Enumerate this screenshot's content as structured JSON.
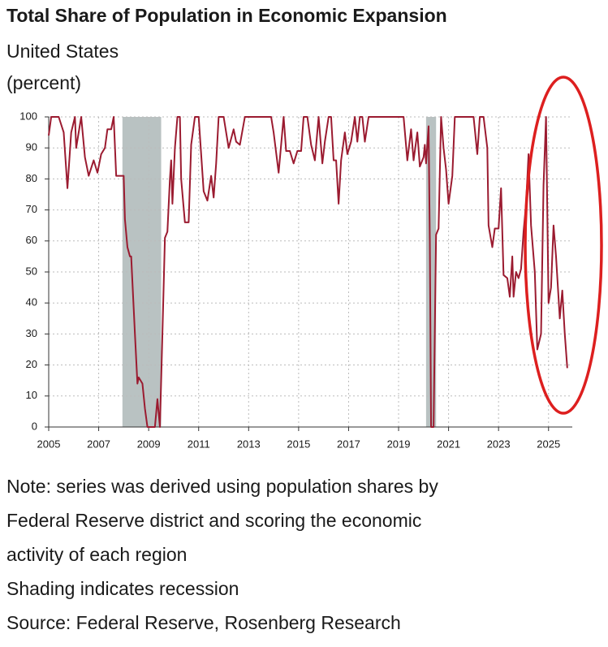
{
  "chart_data": {
    "type": "line",
    "title": "Total Share of Population in Economic Expansion",
    "subtitle": "United States",
    "ylabel": "(percent)",
    "notes": [
      "Note: series was derived using population shares by",
      "Federal Reserve district and scoring the economic",
      "activity of each region",
      "Shading indicates recession",
      "Source: Federal Reserve, Rosenberg Research"
    ],
    "xlim": [
      2005,
      2025.95
    ],
    "ylim": [
      0,
      100
    ],
    "xticks": [
      2005,
      2007,
      2009,
      2011,
      2013,
      2015,
      2017,
      2019,
      2021,
      2023,
      2025
    ],
    "yticks": [
      0,
      10,
      20,
      30,
      40,
      50,
      60,
      70,
      80,
      90,
      100
    ],
    "grid": true,
    "recessions": [
      [
        2007.95,
        2009.5
      ],
      [
        2020.1,
        2020.5
      ]
    ],
    "recession_color": "#b9c2c2",
    "series": [
      {
        "color": "#9b1b30",
        "x": [
          2005.0,
          2005.1,
          2005.4,
          2005.6,
          2005.75,
          2005.9,
          2006.05,
          2006.1,
          2006.3,
          2006.45,
          2006.6,
          2006.8,
          2006.95,
          2007.1,
          2007.25,
          2007.35,
          2007.5,
          2007.6,
          2007.7,
          2007.85,
          2008.0,
          2008.05,
          2008.15,
          2008.25,
          2008.3,
          2008.45,
          2008.55,
          2008.6,
          2008.75,
          2008.85,
          2008.95,
          2009.15,
          2009.25,
          2009.35,
          2009.45,
          2009.55,
          2009.65,
          2009.75,
          2009.85,
          2009.9,
          2009.95,
          2010.05,
          2010.15,
          2010.25,
          2010.3,
          2010.45,
          2010.6,
          2010.7,
          2010.85,
          2011.0,
          2011.2,
          2011.35,
          2011.5,
          2011.6,
          2011.7,
          2011.8,
          2012.0,
          2012.2,
          2012.4,
          2012.5,
          2012.65,
          2012.85,
          2013.1,
          2013.5,
          2013.9,
          2014.0,
          2014.2,
          2014.4,
          2014.5,
          2014.65,
          2014.8,
          2014.95,
          2015.1,
          2015.2,
          2015.35,
          2015.5,
          2015.65,
          2015.8,
          2015.95,
          2016.05,
          2016.2,
          2016.3,
          2016.4,
          2016.5,
          2016.6,
          2016.7,
          2016.85,
          2016.95,
          2017.1,
          2017.25,
          2017.35,
          2017.45,
          2017.55,
          2017.65,
          2017.8,
          2018.2,
          2018.5,
          2018.9,
          2019.2,
          2019.35,
          2019.5,
          2019.6,
          2019.75,
          2019.85,
          2020.0,
          2020.05,
          2020.1,
          2020.2,
          2020.25,
          2020.3,
          2020.35,
          2020.4,
          2020.5,
          2020.6,
          2020.7,
          2020.8,
          2020.9,
          2021.0,
          2021.15,
          2021.25,
          2021.5,
          2021.8,
          2022.0,
          2022.15,
          2022.25,
          2022.4,
          2022.55,
          2022.6,
          2022.75,
          2022.85,
          2023.0,
          2023.1,
          2023.2,
          2023.35,
          2023.45,
          2023.55,
          2023.6,
          2023.7,
          2023.8,
          2023.9,
          2024.0,
          2024.1,
          2024.2,
          2024.3,
          2024.45,
          2024.55,
          2024.7,
          2024.8,
          2024.9,
          2025.0,
          2025.1,
          2025.2,
          2025.3,
          2025.45,
          2025.55,
          2025.65,
          2025.75
        ],
        "values": [
          94,
          100,
          100,
          95,
          77,
          95,
          100,
          90,
          100,
          87,
          81,
          86,
          82,
          88,
          90,
          96,
          96,
          100,
          81,
          81,
          81,
          67,
          58,
          55,
          55,
          30,
          14,
          16,
          14,
          6,
          0,
          0,
          0,
          9,
          0,
          30,
          61,
          63,
          80,
          86,
          72,
          90,
          100,
          100,
          80,
          66,
          66,
          91,
          100,
          100,
          76,
          73,
          81,
          74,
          85,
          100,
          100,
          90,
          96,
          92,
          91,
          100,
          100,
          100,
          100,
          95,
          82,
          100,
          89,
          89,
          85,
          89,
          89,
          100,
          100,
          91,
          86,
          100,
          85,
          92,
          100,
          100,
          86,
          86,
          72,
          86,
          95,
          88,
          92,
          100,
          92,
          100,
          100,
          92,
          100,
          100,
          100,
          100,
          100,
          86,
          96,
          86,
          95,
          84,
          87,
          91,
          85,
          97,
          60,
          0,
          0,
          0,
          62,
          64,
          100,
          90,
          83,
          72,
          81,
          100,
          100,
          100,
          100,
          88,
          100,
          100,
          90,
          65,
          58,
          64,
          64,
          77,
          49,
          48,
          42,
          55,
          42,
          50,
          48,
          51,
          63,
          72,
          88,
          65,
          50,
          25,
          30,
          78,
          100,
          40,
          45,
          65,
          55,
          35,
          44,
          30,
          19
        ]
      }
    ]
  }
}
